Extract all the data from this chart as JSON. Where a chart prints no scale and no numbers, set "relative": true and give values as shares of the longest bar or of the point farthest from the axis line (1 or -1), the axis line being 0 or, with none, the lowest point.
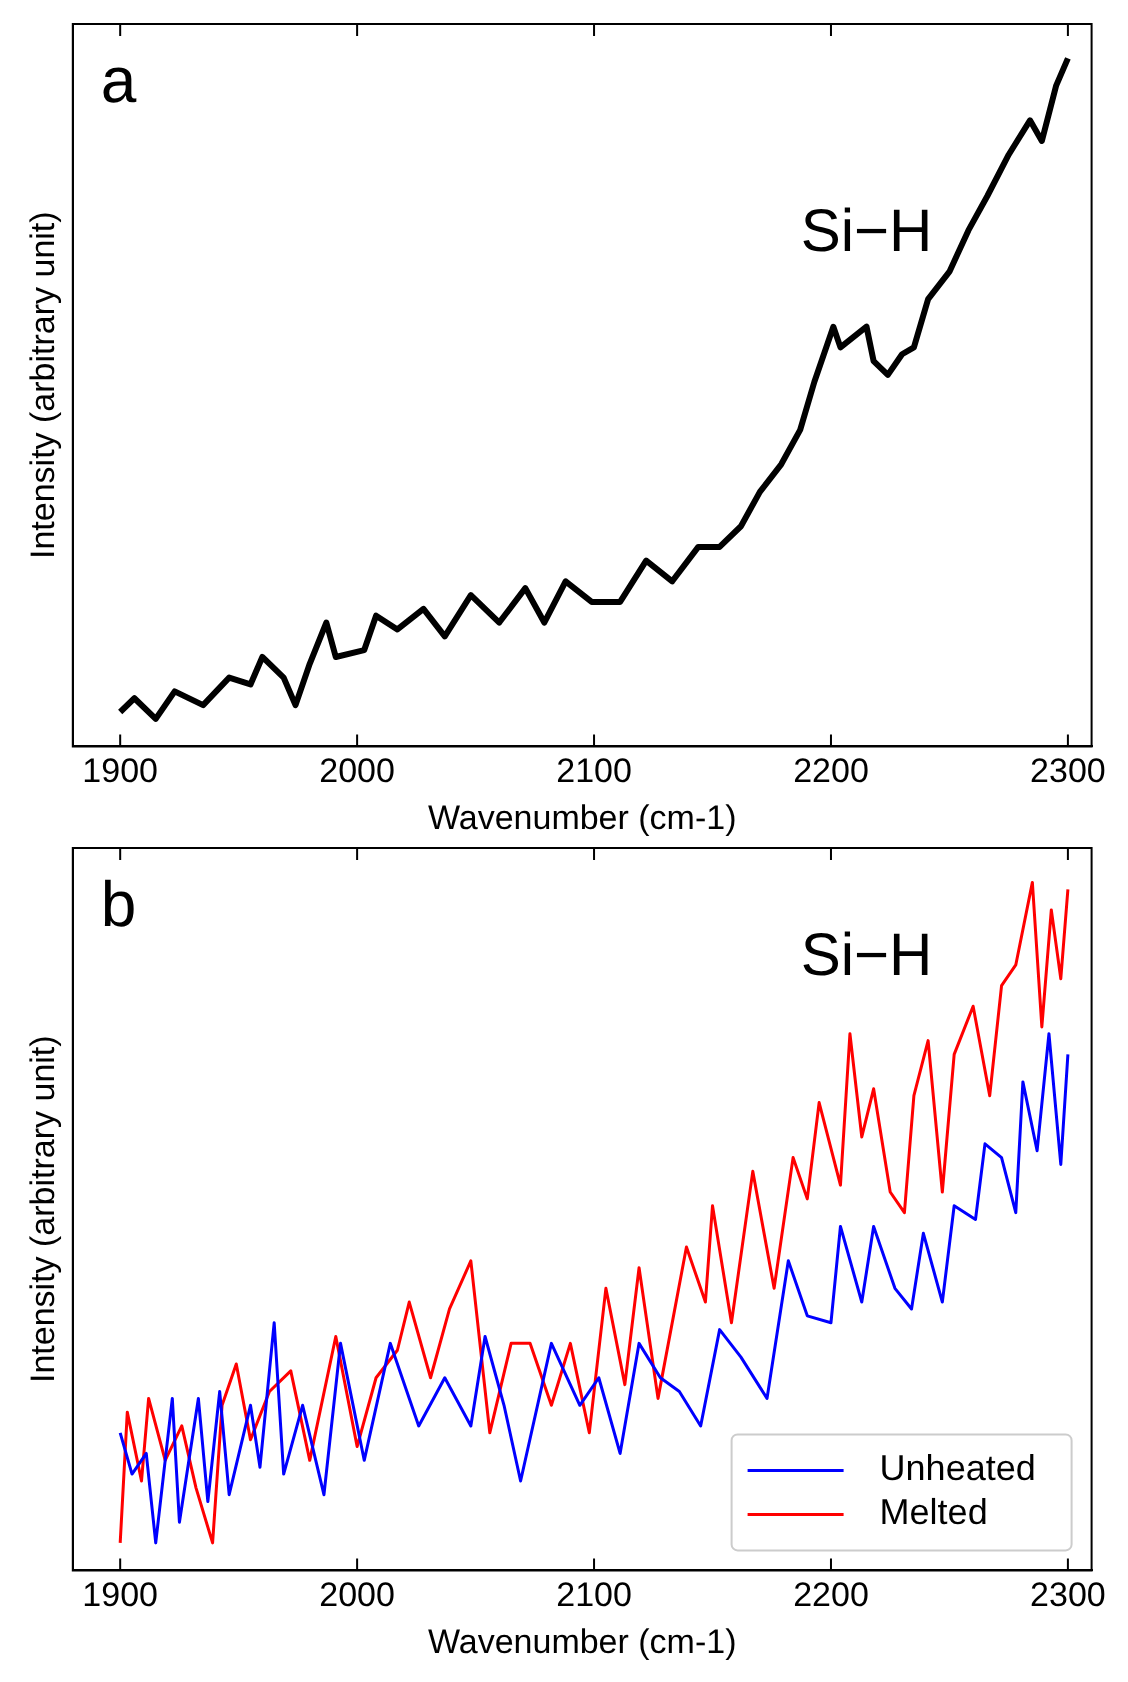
{
  "chart_data": [
    {
      "type": "line",
      "relative": true,
      "xlabel": "Wavenumber (cm-1)",
      "ylabel": "Intensity (arbitrary unit)",
      "annotations": [
        "a",
        "Si−H"
      ],
      "xlim": [
        1880,
        2310
      ],
      "xticks": [
        1900,
        2000,
        2100,
        2200,
        2300
      ],
      "tick_labels": "x",
      "grid": false,
      "marker": "none",
      "line_style": "solid",
      "series": [
        {
          "color": "#000000",
          "x": [
            1900,
            1906,
            1915,
            1923,
            1935,
            1946,
            1955,
            1960,
            1969,
            1974,
            1980,
            1987,
            1991,
            2003,
            2008,
            2017,
            2028,
            2037,
            2048,
            2060,
            2071,
            2079,
            2088,
            2099,
            2111,
            2122,
            2133,
            2144,
            2153,
            2162,
            2170,
            2179,
            2187,
            2193,
            2201,
            2204,
            2215,
            2218,
            2224,
            2230,
            2235,
            2241,
            2250,
            2258,
            2266,
            2275,
            2284,
            2289,
            2295,
            2300
          ],
          "values": [
            0.05,
            0.07,
            0.04,
            0.08,
            0.06,
            0.1,
            0.09,
            0.13,
            0.1,
            0.06,
            0.12,
            0.18,
            0.13,
            0.14,
            0.19,
            0.17,
            0.2,
            0.16,
            0.22,
            0.18,
            0.23,
            0.18,
            0.24,
            0.21,
            0.21,
            0.27,
            0.24,
            0.29,
            0.29,
            0.32,
            0.37,
            0.41,
            0.46,
            0.53,
            0.61,
            0.58,
            0.61,
            0.56,
            0.54,
            0.57,
            0.58,
            0.65,
            0.69,
            0.75,
            0.8,
            0.86,
            0.91,
            0.88,
            0.96,
            1.0
          ]
        }
      ]
    },
    {
      "type": "line",
      "relative": true,
      "xlabel": "Wavenumber (cm-1)",
      "ylabel": "Intensity (arbitrary unit)",
      "annotations": [
        "b",
        "Si−H"
      ],
      "xlim": [
        1880,
        2310
      ],
      "xticks": [
        1900,
        2000,
        2100,
        2200,
        2300
      ],
      "tick_labels": "x",
      "grid": false,
      "marker": "none",
      "line_style": "solid",
      "legend": "bottom right",
      "series": [
        {
          "name": "Unheated",
          "color": "#0000ff",
          "x": [
            1900,
            1905,
            1911,
            1915,
            1922,
            1925,
            1933,
            1937,
            1942,
            1946,
            1955,
            1959,
            1965,
            1969,
            1977,
            1986,
            1993,
            2003,
            2014,
            2026,
            2037,
            2048,
            2054,
            2062,
            2069,
            2082,
            2094,
            2102,
            2111,
            2119,
            2128,
            2136,
            2145,
            2153,
            2162,
            2173,
            2182,
            2190,
            2200,
            2204,
            2213,
            2218,
            2227,
            2234,
            2239,
            2247,
            2252,
            2261,
            2265,
            2272,
            2278,
            2281,
            2287,
            2292,
            2297,
            2300
          ],
          "values": [
            0.2,
            0.14,
            0.17,
            0.04,
            0.25,
            0.07,
            0.25,
            0.1,
            0.26,
            0.11,
            0.24,
            0.15,
            0.36,
            0.14,
            0.24,
            0.11,
            0.33,
            0.16,
            0.33,
            0.21,
            0.28,
            0.21,
            0.34,
            0.24,
            0.13,
            0.33,
            0.24,
            0.28,
            0.17,
            0.33,
            0.28,
            0.26,
            0.21,
            0.35,
            0.31,
            0.25,
            0.45,
            0.37,
            0.36,
            0.5,
            0.39,
            0.5,
            0.41,
            0.38,
            0.49,
            0.39,
            0.53,
            0.51,
            0.62,
            0.6,
            0.52,
            0.71,
            0.61,
            0.78,
            0.59,
            0.75
          ]
        },
        {
          "name": "Melted",
          "color": "#ff0000",
          "x": [
            1900,
            1903,
            1909,
            1912,
            1919,
            1926,
            1932,
            1939,
            1943,
            1949,
            1955,
            1963,
            1972,
            1980,
            1991,
            2000,
            2008,
            2017,
            2022,
            2031,
            2039,
            2048,
            2056,
            2065,
            2073,
            2082,
            2090,
            2098,
            2105,
            2113,
            2119,
            2127,
            2139,
            2147,
            2150,
            2158,
            2167,
            2176,
            2184,
            2190,
            2195,
            2204,
            2208,
            2213,
            2218,
            2225,
            2231,
            2235,
            2241,
            2247,
            2252,
            2260,
            2267,
            2272,
            2278,
            2285,
            2289,
            2293,
            2297,
            2300
          ],
          "values": [
            0.04,
            0.23,
            0.13,
            0.25,
            0.16,
            0.21,
            0.12,
            0.04,
            0.24,
            0.3,
            0.19,
            0.26,
            0.29,
            0.16,
            0.34,
            0.18,
            0.28,
            0.32,
            0.39,
            0.28,
            0.38,
            0.45,
            0.2,
            0.33,
            0.33,
            0.24,
            0.33,
            0.2,
            0.41,
            0.27,
            0.44,
            0.25,
            0.47,
            0.39,
            0.53,
            0.36,
            0.58,
            0.41,
            0.6,
            0.54,
            0.68,
            0.56,
            0.78,
            0.63,
            0.7,
            0.55,
            0.52,
            0.69,
            0.77,
            0.55,
            0.75,
            0.82,
            0.69,
            0.85,
            0.88,
            1.0,
            0.79,
            0.96,
            0.86,
            0.99
          ]
        }
      ]
    }
  ]
}
